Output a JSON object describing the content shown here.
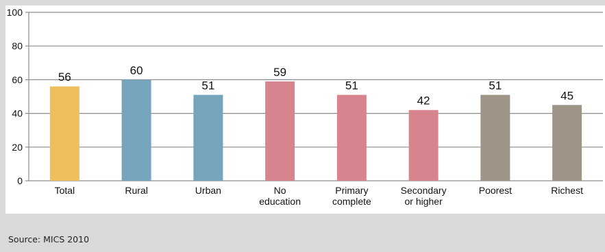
{
  "chart_data": {
    "type": "bar",
    "categories": [
      [
        "Total"
      ],
      [
        "Rural"
      ],
      [
        "Urban"
      ],
      [
        "No",
        "education"
      ],
      [
        "Primary",
        "complete"
      ],
      [
        "Secondary",
        "or higher"
      ],
      [
        "Poorest"
      ],
      [
        "Richest"
      ]
    ],
    "values": [
      56,
      60,
      51,
      59,
      51,
      42,
      51,
      45
    ],
    "bar_colors": [
      "#eebf5a",
      "#75a4bc",
      "#75a4bc",
      "#d8848f",
      "#d8848f",
      "#d8848f",
      "#9e9488",
      "#9e9488"
    ],
    "ylim": [
      0,
      100
    ],
    "y_ticks": [
      0,
      20,
      40,
      60,
      80,
      100
    ],
    "grid": true,
    "legend": "none"
  },
  "source": "Source: MICS 2010"
}
